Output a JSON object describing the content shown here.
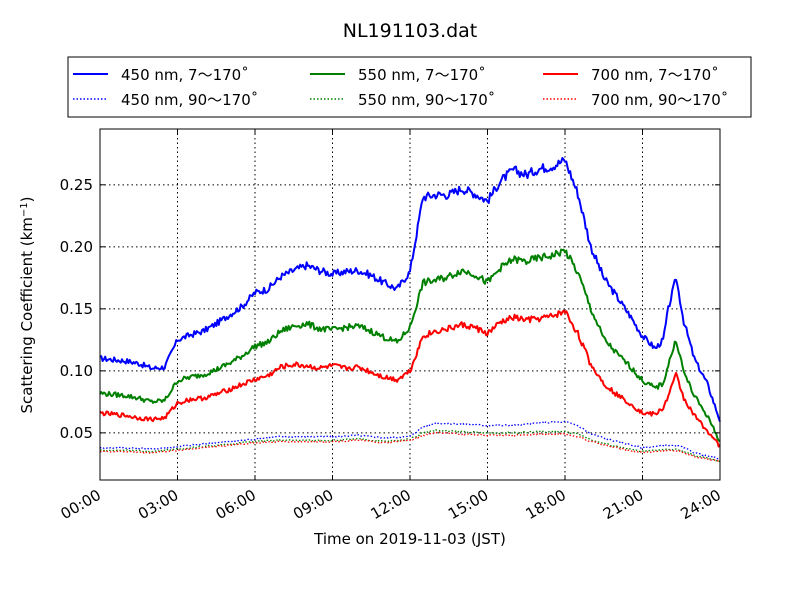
{
  "chart_data": {
    "type": "line",
    "title": "NL191103.dat",
    "xlabel": "Time on 2019-11-03 (JST)",
    "ylabel": "Scattering Coefficient (km",
    "ylabel_sup": "−1",
    "ylabel_end": ")",
    "x_ticks": [
      "00:00",
      "03:00",
      "06:00",
      "09:00",
      "12:00",
      "15:00",
      "18:00",
      "21:00",
      "24:00"
    ],
    "x_tick_hours": [
      0,
      3,
      6,
      9,
      12,
      15,
      18,
      21,
      24
    ],
    "y_ticks": [
      "0.05",
      "0.10",
      "0.15",
      "0.20",
      "0.25"
    ],
    "y_tick_values": [
      0.05,
      0.1,
      0.15,
      0.2,
      0.25
    ],
    "xlim": [
      0,
      24
    ],
    "ylim": [
      0.012,
      0.295
    ],
    "grid": true,
    "legend_position": "top, above plot",
    "series": [
      {
        "name": "450 nm, 7～170˚",
        "color": "#0000ff",
        "style": "solid",
        "x": [
          0,
          0.5,
          1,
          1.5,
          2,
          2.5,
          3,
          3.5,
          4,
          4.5,
          5,
          5.5,
          6,
          6.5,
          7,
          7.5,
          8,
          8.5,
          9,
          9.5,
          10,
          10.5,
          11,
          11.5,
          12,
          12.5,
          13,
          13.5,
          14,
          14.5,
          15,
          15.5,
          16,
          16.5,
          17,
          17.5,
          18,
          18.5,
          19,
          19.5,
          20,
          20.5,
          21,
          21.5,
          21.8,
          22,
          22.3,
          22.6,
          23,
          23.5,
          24
        ],
        "y": [
          0.11,
          0.109,
          0.108,
          0.106,
          0.102,
          0.103,
          0.125,
          0.129,
          0.132,
          0.138,
          0.145,
          0.152,
          0.163,
          0.166,
          0.176,
          0.181,
          0.185,
          0.181,
          0.178,
          0.18,
          0.181,
          0.177,
          0.171,
          0.166,
          0.18,
          0.24,
          0.242,
          0.242,
          0.247,
          0.243,
          0.237,
          0.253,
          0.262,
          0.258,
          0.263,
          0.265,
          0.27,
          0.243,
          0.2,
          0.175,
          0.16,
          0.145,
          0.128,
          0.118,
          0.125,
          0.15,
          0.175,
          0.14,
          0.11,
          0.09,
          0.06
        ]
      },
      {
        "name": "450 nm, 90～170˚",
        "color": "#0000ff",
        "style": "dotted",
        "x": [
          0,
          1,
          2,
          3,
          4,
          5,
          6,
          7,
          8,
          9,
          10,
          11,
          12,
          12.5,
          13,
          14,
          15,
          16,
          17,
          18,
          18.5,
          19,
          20,
          21,
          22,
          22.5,
          23,
          24
        ],
        "y": [
          0.038,
          0.038,
          0.037,
          0.039,
          0.041,
          0.043,
          0.045,
          0.047,
          0.047,
          0.047,
          0.048,
          0.046,
          0.047,
          0.055,
          0.058,
          0.057,
          0.056,
          0.056,
          0.058,
          0.059,
          0.056,
          0.049,
          0.043,
          0.038,
          0.04,
          0.039,
          0.034,
          0.029
        ]
      },
      {
        "name": "550 nm, 7～170˚",
        "color": "#008000",
        "style": "solid",
        "x": [
          0,
          0.5,
          1,
          1.5,
          2,
          2.5,
          3,
          3.5,
          4,
          4.5,
          5,
          5.5,
          6,
          6.5,
          7,
          7.5,
          8,
          8.5,
          9,
          9.5,
          10,
          10.5,
          11,
          11.5,
          12,
          12.5,
          13,
          13.5,
          14,
          14.5,
          15,
          15.5,
          16,
          16.5,
          17,
          17.5,
          18,
          18.5,
          19,
          19.5,
          20,
          20.5,
          21,
          21.5,
          21.8,
          22,
          22.3,
          22.6,
          23,
          23.5,
          24
        ],
        "y": [
          0.082,
          0.081,
          0.08,
          0.078,
          0.075,
          0.076,
          0.092,
          0.095,
          0.097,
          0.101,
          0.106,
          0.112,
          0.12,
          0.123,
          0.132,
          0.136,
          0.138,
          0.134,
          0.133,
          0.135,
          0.136,
          0.132,
          0.127,
          0.123,
          0.135,
          0.171,
          0.173,
          0.176,
          0.181,
          0.178,
          0.171,
          0.183,
          0.19,
          0.188,
          0.191,
          0.193,
          0.197,
          0.179,
          0.15,
          0.126,
          0.114,
          0.104,
          0.092,
          0.086,
          0.09,
          0.105,
          0.125,
          0.099,
          0.08,
          0.064,
          0.043
        ]
      },
      {
        "name": "550 nm, 90～170˚",
        "color": "#008000",
        "style": "dotted",
        "x": [
          0,
          1,
          2,
          3,
          4,
          5,
          6,
          7,
          8,
          9,
          10,
          11,
          12,
          12.5,
          13,
          14,
          15,
          16,
          17,
          18,
          18.5,
          19,
          20,
          21,
          22,
          22.5,
          23,
          24
        ],
        "y": [
          0.036,
          0.036,
          0.035,
          0.037,
          0.039,
          0.041,
          0.043,
          0.044,
          0.044,
          0.044,
          0.045,
          0.043,
          0.045,
          0.05,
          0.052,
          0.051,
          0.05,
          0.05,
          0.051,
          0.051,
          0.049,
          0.044,
          0.039,
          0.035,
          0.037,
          0.036,
          0.032,
          0.027
        ]
      },
      {
        "name": "700 nm, 7～170˚",
        "color": "#ff0000",
        "style": "solid",
        "x": [
          0,
          0.5,
          1,
          1.5,
          2,
          2.5,
          3,
          3.5,
          4,
          4.5,
          5,
          5.5,
          6,
          6.5,
          7,
          7.5,
          8,
          8.5,
          9,
          9.5,
          10,
          10.5,
          11,
          11.5,
          12,
          12.5,
          13,
          13.5,
          14,
          14.5,
          15,
          15.5,
          16,
          16.5,
          17,
          17.5,
          18,
          18.5,
          19,
          19.5,
          20,
          20.5,
          21,
          21.5,
          21.8,
          22,
          22.3,
          22.6,
          23,
          23.5,
          24
        ],
        "y": [
          0.066,
          0.065,
          0.064,
          0.062,
          0.061,
          0.062,
          0.074,
          0.077,
          0.078,
          0.081,
          0.085,
          0.089,
          0.093,
          0.096,
          0.103,
          0.105,
          0.104,
          0.102,
          0.104,
          0.102,
          0.103,
          0.099,
          0.095,
          0.093,
          0.1,
          0.128,
          0.132,
          0.134,
          0.137,
          0.135,
          0.13,
          0.139,
          0.143,
          0.141,
          0.142,
          0.144,
          0.148,
          0.13,
          0.105,
          0.09,
          0.081,
          0.074,
          0.066,
          0.065,
          0.07,
          0.08,
          0.097,
          0.078,
          0.064,
          0.052,
          0.039
        ]
      },
      {
        "name": "700 nm, 90～170˚",
        "color": "#ff0000",
        "style": "dotted",
        "x": [
          0,
          1,
          2,
          3,
          4,
          5,
          6,
          7,
          8,
          9,
          10,
          11,
          12,
          12.5,
          13,
          14,
          15,
          16,
          17,
          18,
          18.5,
          19,
          20,
          21,
          22,
          22.5,
          23,
          24
        ],
        "y": [
          0.035,
          0.035,
          0.034,
          0.036,
          0.038,
          0.04,
          0.042,
          0.043,
          0.043,
          0.043,
          0.044,
          0.042,
          0.044,
          0.048,
          0.05,
          0.049,
          0.048,
          0.048,
          0.049,
          0.049,
          0.047,
          0.043,
          0.038,
          0.034,
          0.036,
          0.035,
          0.031,
          0.027
        ]
      }
    ]
  }
}
